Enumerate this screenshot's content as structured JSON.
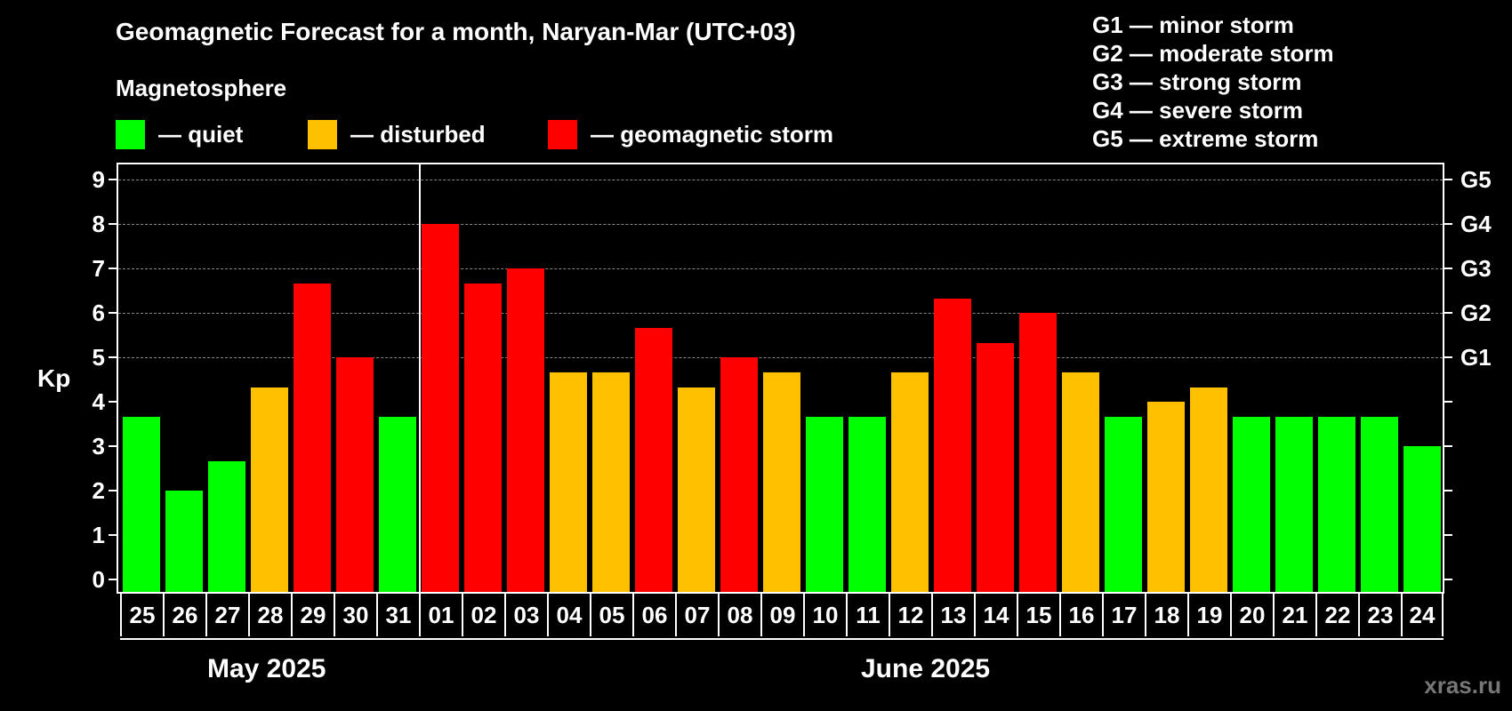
{
  "header": {
    "title": "Geomagnetic Forecast for a month, Naryan-Mar (UTC+03)",
    "magnetosphere_label": "Magnetosphere"
  },
  "legend": [
    {
      "label": "— quiet",
      "color": "#00ff00"
    },
    {
      "label": "— disturbed",
      "color": "#ffc000"
    },
    {
      "label": "— geomagnetic storm",
      "color": "#ff0000"
    }
  ],
  "g_legend": [
    "G1 — minor storm",
    "G2 — moderate storm",
    "G3 — strong storm",
    "G4 — severe storm",
    "G5 — extreme storm"
  ],
  "colors": {
    "quiet": "#00ff00",
    "disturbed": "#ffc000",
    "storm": "#ff0000",
    "grid": "#888888",
    "background": "#000000"
  },
  "watermark": "xras.ru",
  "chart_data": {
    "type": "bar",
    "title": "Geomagnetic Forecast for a month, Naryan-Mar (UTC+03)",
    "xlabel": "",
    "ylabel": "Kp",
    "ylim": [
      0,
      9
    ],
    "yticks": [
      "0",
      "1",
      "2",
      "3",
      "4",
      "5",
      "6",
      "7",
      "8",
      "9"
    ],
    "right_axis_labels": [
      {
        "kp": 5,
        "label": "G1"
      },
      {
        "kp": 6,
        "label": "G2"
      },
      {
        "kp": 7,
        "label": "G3"
      },
      {
        "kp": 8,
        "label": "G4"
      },
      {
        "kp": 9,
        "label": "G5"
      }
    ],
    "grid": "dashed horizontal at Kp 5-9",
    "month_labels": [
      {
        "label": "May 2025",
        "start_index": 0,
        "end_index": 6
      },
      {
        "label": "June 2025",
        "start_index": 7,
        "end_index": 30
      }
    ],
    "categories": [
      "25",
      "26",
      "27",
      "28",
      "29",
      "30",
      "31",
      "01",
      "02",
      "03",
      "04",
      "05",
      "06",
      "07",
      "08",
      "09",
      "10",
      "11",
      "12",
      "13",
      "14",
      "15",
      "16",
      "17",
      "18",
      "19",
      "20",
      "21",
      "22",
      "23",
      "24"
    ],
    "values": [
      3.67,
      2.0,
      2.67,
      4.33,
      6.67,
      5.0,
      3.67,
      8.0,
      6.67,
      7.0,
      4.67,
      4.67,
      5.67,
      4.33,
      5.0,
      4.67,
      3.67,
      3.67,
      4.67,
      6.33,
      5.33,
      6.0,
      4.67,
      3.67,
      4.0,
      4.33,
      3.67,
      3.67,
      3.67,
      3.67,
      3.0
    ],
    "levels": [
      "quiet",
      "quiet",
      "quiet",
      "disturbed",
      "storm",
      "storm",
      "quiet",
      "storm",
      "storm",
      "storm",
      "disturbed",
      "disturbed",
      "storm",
      "disturbed",
      "storm",
      "disturbed",
      "quiet",
      "quiet",
      "disturbed",
      "storm",
      "storm",
      "storm",
      "disturbed",
      "quiet",
      "disturbed",
      "disturbed",
      "quiet",
      "quiet",
      "quiet",
      "quiet",
      "quiet"
    ]
  }
}
